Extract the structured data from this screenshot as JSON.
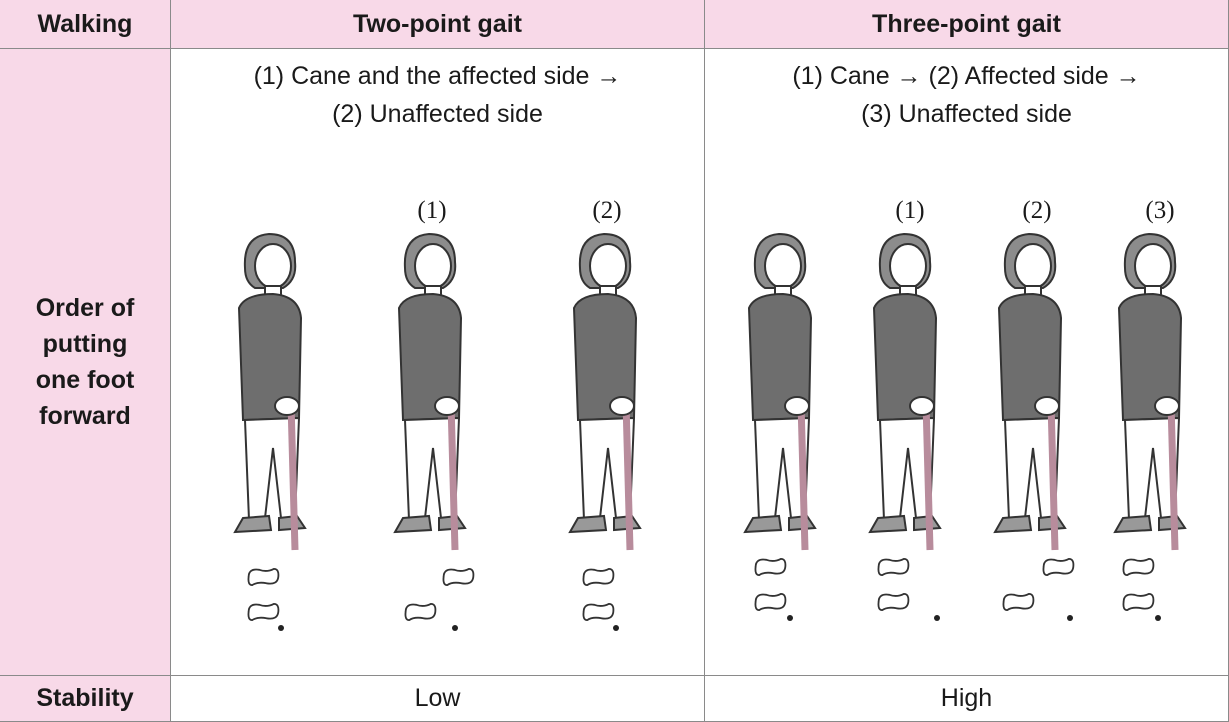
{
  "header": [
    "Walking",
    "Two-point gait",
    "Three-point gait"
  ],
  "order_row": {
    "label": [
      "Order of",
      "putting",
      "one foot",
      "forward"
    ],
    "two_point": {
      "description": [
        "(1) Cane and the affected side →",
        "(2) Unaffected side"
      ],
      "steps": [
        "(1)",
        "(2)"
      ]
    },
    "three_point": {
      "description": [
        "(1) Cane → (2) Affected side →",
        "(3) Unaffected side"
      ],
      "steps": [
        "(1)",
        "(2)",
        "(3)"
      ]
    }
  },
  "stability_row": {
    "label": "Stability",
    "two_point": "Low",
    "three_point": "High"
  }
}
